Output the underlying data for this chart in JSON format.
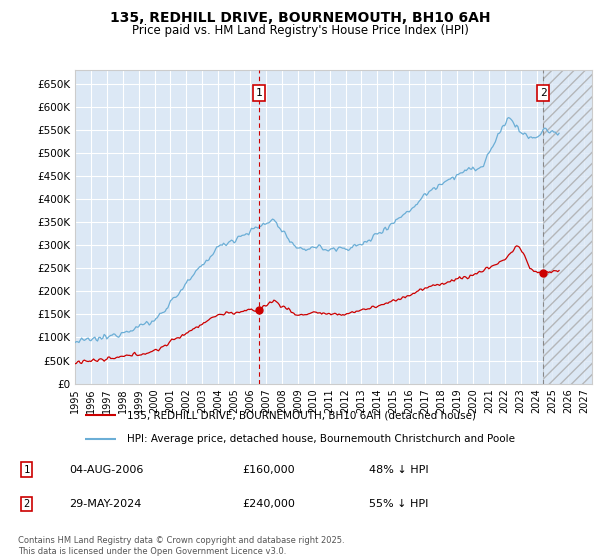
{
  "title": "135, REDHILL DRIVE, BOURNEMOUTH, BH10 6AH",
  "subtitle": "Price paid vs. HM Land Registry's House Price Index (HPI)",
  "ylim": [
    0,
    680000
  ],
  "xlim_start": 1995.0,
  "xlim_end": 2027.5,
  "yticks": [
    0,
    50000,
    100000,
    150000,
    200000,
    250000,
    300000,
    350000,
    400000,
    450000,
    500000,
    550000,
    600000,
    650000
  ],
  "ytick_labels": [
    "£0",
    "£50K",
    "£100K",
    "£150K",
    "£200K",
    "£250K",
    "£300K",
    "£350K",
    "£400K",
    "£450K",
    "£500K",
    "£550K",
    "£600K",
    "£650K"
  ],
  "xticks": [
    1995,
    1996,
    1997,
    1998,
    1999,
    2000,
    2001,
    2002,
    2003,
    2004,
    2005,
    2006,
    2007,
    2008,
    2009,
    2010,
    2011,
    2012,
    2013,
    2014,
    2015,
    2016,
    2017,
    2018,
    2019,
    2020,
    2021,
    2022,
    2023,
    2024,
    2025,
    2026,
    2027
  ],
  "plot_bg_color": "#dce8f5",
  "grid_color": "#ffffff",
  "hpi_line_color": "#6baed6",
  "price_line_color": "#cc0000",
  "marker1_x": 2006.58,
  "marker1_y_price": 160000,
  "marker2_x": 2024.41,
  "marker2_y_price": 240000,
  "legend1_label": "135, REDHILL DRIVE, BOURNEMOUTH, BH10 6AH (detached house)",
  "legend2_label": "HPI: Average price, detached house, Bournemouth Christchurch and Poole",
  "annotation1_date": "04-AUG-2006",
  "annotation1_price": "£160,000",
  "annotation1_hpi": "48% ↓ HPI",
  "annotation2_date": "29-MAY-2024",
  "annotation2_price": "£240,000",
  "annotation2_hpi": "55% ↓ HPI",
  "footer": "Contains HM Land Registry data © Crown copyright and database right 2025.\nThis data is licensed under the Open Government Licence v3.0.",
  "hatch_region_start": 2024.41,
  "hatch_region_end": 2027.5
}
